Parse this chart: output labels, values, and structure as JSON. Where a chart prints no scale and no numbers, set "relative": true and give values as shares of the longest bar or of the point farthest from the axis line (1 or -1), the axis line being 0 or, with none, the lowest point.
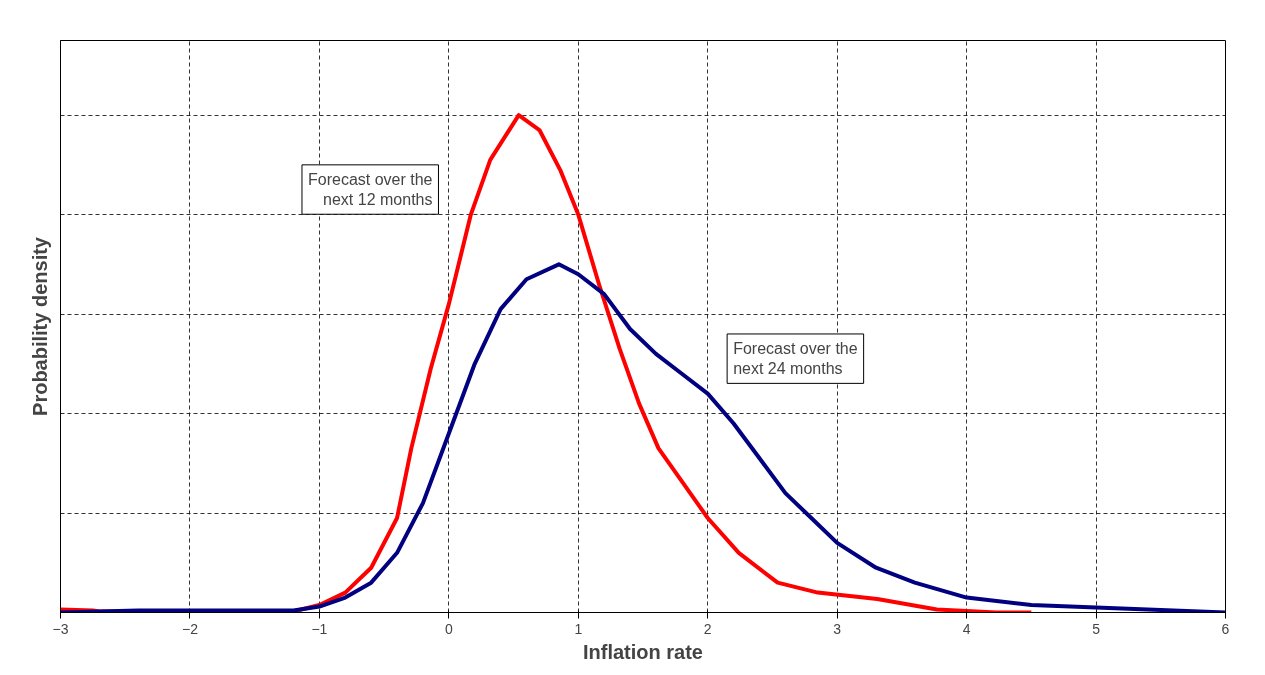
{
  "chart_data": {
    "type": "line",
    "xlabel": "Inflation rate",
    "ylabel": "Probability density",
    "relative": true,
    "xlim": [
      -3,
      6
    ],
    "xticks": [
      -3,
      -2,
      -1,
      0,
      1,
      2,
      3,
      4,
      5,
      6
    ],
    "grid": true,
    "tick_labels": "x",
    "line_style": "solid",
    "marker": "none",
    "series": [
      {
        "name": "Forecast over the next 12 months",
        "color": "#ff0000",
        "x": [
          -3,
          -2.75,
          -2.7,
          -1.2,
          -1.0,
          -0.8,
          -0.6,
          -0.4,
          -0.29,
          -0.14,
          0,
          0.17,
          0.32,
          0.54,
          0.7,
          0.86,
          1.0,
          1.16,
          1.32,
          1.47,
          1.62,
          1.81,
          2.0,
          2.24,
          2.54,
          2.85,
          3.31,
          3.77,
          4.23,
          4.5
        ],
        "values": [
          0.006,
          0.004,
          0.002,
          0.002,
          0.015,
          0.04,
          0.09,
          0.19,
          0.33,
          0.49,
          0.62,
          0.8,
          0.91,
          1.0,
          0.97,
          0.89,
          0.8,
          0.66,
          0.53,
          0.42,
          0.33,
          0.26,
          0.19,
          0.12,
          0.06,
          0.04,
          0.027,
          0.006,
          0.0,
          0.0
        ]
      },
      {
        "name": "Forecast over the next 24 months",
        "color": "#000080",
        "x": [
          -3,
          -2.4,
          -1.2,
          -1.0,
          -0.8,
          -0.6,
          -0.4,
          -0.2,
          0,
          0.2,
          0.4,
          0.6,
          0.85,
          1.0,
          1.2,
          1.4,
          1.6,
          1.8,
          2.0,
          2.2,
          2.4,
          2.6,
          2.8,
          3.0,
          3.3,
          3.6,
          4.0,
          4.5,
          5.0,
          5.5,
          6.0
        ],
        "values": [
          0.0,
          0.004,
          0.004,
          0.012,
          0.03,
          0.06,
          0.12,
          0.22,
          0.36,
          0.5,
          0.61,
          0.67,
          0.7,
          0.68,
          0.64,
          0.57,
          0.52,
          0.48,
          0.44,
          0.38,
          0.31,
          0.24,
          0.19,
          0.14,
          0.09,
          0.06,
          0.03,
          0.015,
          0.01,
          0.005,
          0.0
        ]
      }
    ]
  }
}
